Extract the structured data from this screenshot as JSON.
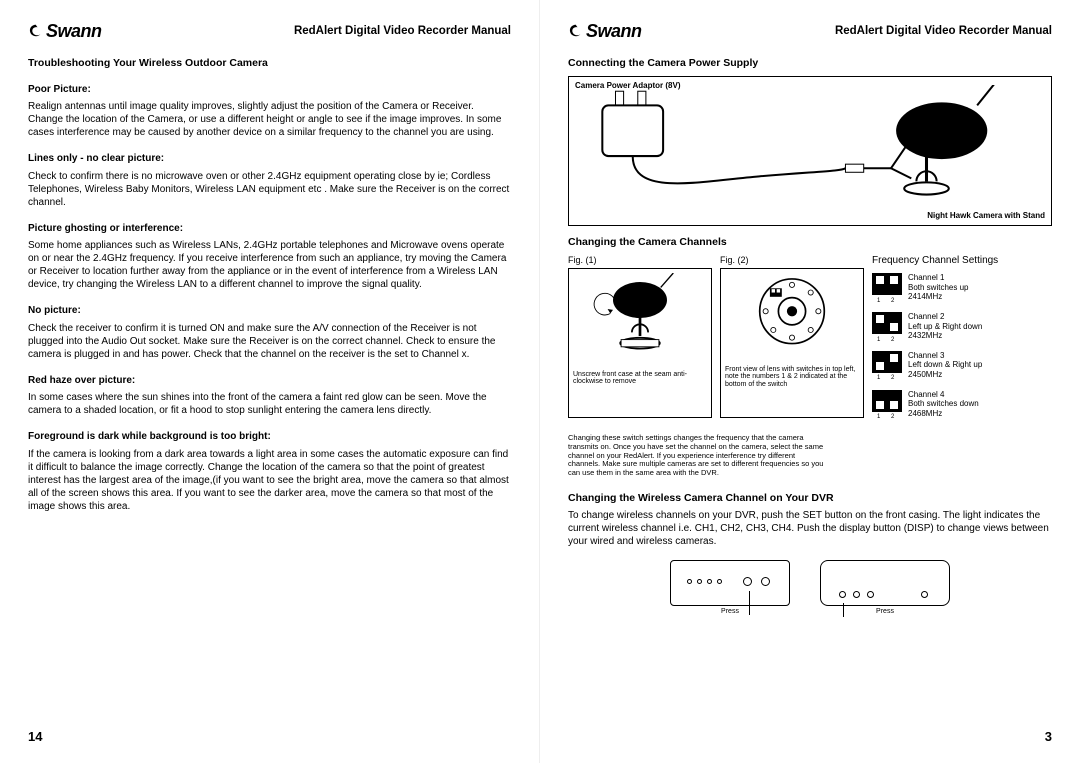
{
  "brand": "Swann",
  "manual_title": "RedAlert Digital Video Recorder Manual",
  "left": {
    "page_num": "14",
    "h1": "Troubleshooting Your Wireless Outdoor Camera",
    "sections": [
      {
        "h": "Poor Picture:",
        "p": "Realign antennas until image quality improves, slightly adjust the position of the Camera or Receiver. Change the location of the Camera, or use a different height or angle to see if the image improves. In some cases interference may be caused by another device on a similar frequency to the channel you are using."
      },
      {
        "h": "Lines only - no clear picture:",
        "p": "Check to confirm there is no microwave oven or other 2.4GHz equipment operating close by ie;  Cordless Telephones, Wireless Baby Monitors, Wireless LAN equipment etc . Make sure the Receiver is on the correct channel."
      },
      {
        "h": "Picture ghosting or interference:",
        "p": "Some home appliances such as Wireless LANs, 2.4GHz portable telephones and Microwave ovens operate on or near the 2.4GHz frequency. If you receive interference from such an appliance, try moving the Camera or Receiver to location further away from the appliance or in the event of interference from a Wireless LAN device, try changing the Wireless LAN to a different channel to improve the signal quality."
      },
      {
        "h": "No picture:",
        "p": "Check the receiver to confirm it is turned ON and make sure the A/V connection of the Receiver is not plugged into the Audio Out socket. Make sure the Receiver is on the correct channel. Check to ensure the camera is plugged in and has power. Check that the channel on the receiver is the set to Channel x."
      },
      {
        "h": "Red haze over picture:",
        "p": "In some cases where the sun shines into the front of the camera a faint red glow can be seen. Move the camera to a shaded location, or fit a hood to stop sunlight entering the camera lens directly."
      },
      {
        "h": "Foreground is dark while background is too bright:",
        "p": "If the camera is looking from a dark area towards a light area in some cases the automatic exposure can find it difficult to balance the image correctly. Change the location of the camera so that the point of greatest interest has the largest area of the image,(if you want to see the bright area, move the camera so that almost all of the screen shows this area. If you want to see the darker area, move the camera so that most of the image shows this area."
      }
    ]
  },
  "right": {
    "page_num": "3",
    "h1": "Connecting the Camera Power Supply",
    "adaptor_label": "Camera Power Adaptor (8V)",
    "camera_label": "Night Hawk Camera with Stand",
    "h2": "Changing the Camera Channels",
    "fig1": "Fig. (1)",
    "fig2": "Fig. (2)",
    "freq_title": "Frequency Channel Settings",
    "fig1_note": "Unscrew front case at the seam anti-clockwise to remove",
    "fig2_note": "Front view of lens with switches in top left, note the numbers 1 & 2 indicated at the bottom of the switch",
    "channels": [
      {
        "name": "Channel 1",
        "desc": "Both switches up",
        "freq": "2414MHz",
        "sw": [
          "up",
          "up"
        ]
      },
      {
        "name": "Channel 2",
        "desc": "Left up & Right down",
        "freq": "2432MHz",
        "sw": [
          "up",
          "down"
        ]
      },
      {
        "name": "Channel 3",
        "desc": "Left down & Right up",
        "freq": "2450MHz",
        "sw": [
          "down",
          "up"
        ]
      },
      {
        "name": "Channel 4",
        "desc": "Both switches down",
        "freq": "2468MHz",
        "sw": [
          "down",
          "down"
        ]
      }
    ],
    "channel_note": "Changing these switch settings changes the frequency that the camera transmits on. Once you have set the channel on the camera, select the same channel on your RedAlert. If you experience interference try different channels. Make sure multiple cameras are set to different frequencies so you can use them in the same area with the DVR.",
    "h3": "Changing the Wireless Camera Channel on Your DVR",
    "dvr_text": "To change wireless channels on your DVR, push the SET button on the front casing.  The light indicates the current wireless channel i.e. CH1, CH2, CH3, CH4.  Push the display button (DISP) to change views between your wired and wireless cameras.",
    "press": "Press"
  }
}
